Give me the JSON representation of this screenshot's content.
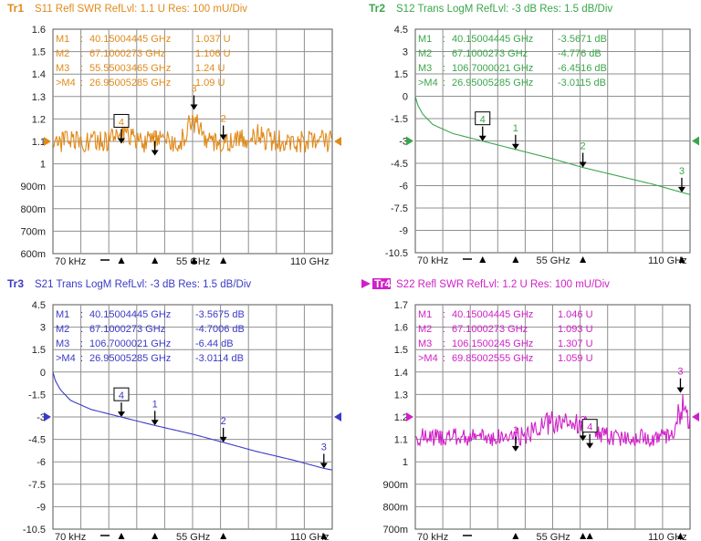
{
  "chart_data": [
    {
      "type": "line",
      "trace_id": "Tr1",
      "header": "S11 Refl SWR RefLvl: 1.1  U Res: 100 mU/Div",
      "color": "#e08a1a",
      "yticks": [
        "1.6",
        "1.5",
        "1.4",
        "1.3",
        "1.2",
        "1.1",
        "1",
        "900m",
        "800m",
        "700m",
        "600m"
      ],
      "ylim": [
        0.6,
        1.6
      ],
      "ref_level": 1.1,
      "xlim": [
        7e-05,
        110
      ],
      "xlabels": [
        "70 kHz",
        "55 GHz",
        "110 GHz"
      ],
      "markers_table": [
        {
          "id": "M1",
          "freq": "40.15004445 GHz",
          "value": "1.037  U"
        },
        {
          "id": "M2",
          "freq": "67.1000273 GHz",
          "value": "1.106  U"
        },
        {
          "id": "M3",
          "freq": "55.55003465 GHz",
          "value": "1.24  U"
        },
        {
          "id": ">M4",
          "freq": "26.95005285 GHz",
          "value": "1.09  U"
        }
      ],
      "markers": [
        {
          "label": "1",
          "x": 40.15,
          "y": 1.037
        },
        {
          "label": "2",
          "x": 67.1,
          "y": 1.106
        },
        {
          "label": "3",
          "x": 55.55,
          "y": 1.24
        },
        {
          "label": "4",
          "x": 26.95,
          "y": 1.09,
          "active": true
        }
      ],
      "series": [
        {
          "style": "noise",
          "base": 1.1,
          "amp": 0.05,
          "seed": 3,
          "bumps": [
            {
              "x": 27,
              "h": 0.05,
              "w": 4
            },
            {
              "x": 55.5,
              "h": 0.12,
              "w": 3
            },
            {
              "x": 80,
              "h": 0.04,
              "w": 4
            }
          ]
        }
      ]
    },
    {
      "type": "line",
      "trace_id": "Tr2",
      "header": "S12 Trans LogM RefLvl: -3  dB Res: 1.5  dB/Div",
      "color": "#3aa64a",
      "yticks": [
        "4.5",
        "3",
        "1.5",
        "0",
        "-1.5",
        "-3",
        "-4.5",
        "-6",
        "-7.5",
        "-9",
        "-10.5"
      ],
      "ylim": [
        -10.5,
        4.5
      ],
      "ref_level": -3,
      "xlim": [
        7e-05,
        110
      ],
      "xlabels": [
        "70 kHz",
        "55 GHz",
        "110 GHz"
      ],
      "markers_table": [
        {
          "id": "M1",
          "freq": "40.15004445 GHz",
          "value": "-3.5671  dB"
        },
        {
          "id": "M2",
          "freq": "67.1000273 GHz",
          "value": "-4.776  dB"
        },
        {
          "id": "M3",
          "freq": "106.7000021 GHz",
          "value": "-6.4516  dB"
        },
        {
          "id": ">M4",
          "freq": "26.95005285 GHz",
          "value": "-3.0115  dB"
        }
      ],
      "markers": [
        {
          "label": "1",
          "x": 40.15,
          "y": -3.5671
        },
        {
          "label": "2",
          "x": 67.1,
          "y": -4.776
        },
        {
          "label": "3",
          "x": 106.7,
          "y": -6.4516
        },
        {
          "label": "4",
          "x": 26.95,
          "y": -3.0115,
          "active": true
        }
      ],
      "series": [
        {
          "style": "smooth",
          "points": [
            [
              7e-05,
              0
            ],
            [
              1,
              -0.6
            ],
            [
              3,
              -1.2
            ],
            [
              7,
              -1.9
            ],
            [
              15,
              -2.5
            ],
            [
              26.95,
              -3.01
            ],
            [
              40.15,
              -3.57
            ],
            [
              55,
              -4.2
            ],
            [
              67.1,
              -4.78
            ],
            [
              80,
              -5.3
            ],
            [
              95,
              -5.9
            ],
            [
              106.7,
              -6.45
            ],
            [
              110,
              -6.6
            ]
          ]
        }
      ]
    },
    {
      "type": "line",
      "trace_id": "Tr3",
      "header": "S21 Trans LogM RefLvl: -3  dB Res: 1.5  dB/Div",
      "color": "#3a3ac8",
      "yticks": [
        "4.5",
        "3",
        "1.5",
        "0",
        "-1.5",
        "-3",
        "-4.5",
        "-6",
        "-7.5",
        "-9",
        "-10.5"
      ],
      "ylim": [
        -10.5,
        4.5
      ],
      "ref_level": -3,
      "xlim": [
        7e-05,
        110
      ],
      "xlabels": [
        "70 kHz",
        "55 GHz",
        "110 GHz"
      ],
      "markers_table": [
        {
          "id": "M1",
          "freq": "40.15004445 GHz",
          "value": "-3.5675  dB"
        },
        {
          "id": "M2",
          "freq": "67.1000273 GHz",
          "value": "-4.7006  dB"
        },
        {
          "id": "M3",
          "freq": "106.7000021 GHz",
          "value": "-6.44  dB"
        },
        {
          "id": ">M4",
          "freq": "26.95005285 GHz",
          "value": "-3.0114  dB"
        }
      ],
      "markers": [
        {
          "label": "1",
          "x": 40.15,
          "y": -3.5675
        },
        {
          "label": "2",
          "x": 67.1,
          "y": -4.7006
        },
        {
          "label": "3",
          "x": 106.7,
          "y": -6.44
        },
        {
          "label": "4",
          "x": 26.95,
          "y": -3.0114,
          "active": true
        }
      ],
      "series": [
        {
          "style": "smooth",
          "points": [
            [
              7e-05,
              0
            ],
            [
              1,
              -0.6
            ],
            [
              3,
              -1.2
            ],
            [
              7,
              -1.9
            ],
            [
              15,
              -2.5
            ],
            [
              26.95,
              -3.01
            ],
            [
              40.15,
              -3.57
            ],
            [
              55,
              -4.15
            ],
            [
              67.1,
              -4.7
            ],
            [
              80,
              -5.3
            ],
            [
              95,
              -5.9
            ],
            [
              106.7,
              -6.44
            ],
            [
              110,
              -6.55
            ]
          ]
        }
      ]
    },
    {
      "type": "line",
      "trace_id": "Tr4",
      "header": "S22 Refl SWR RefLvl: 1.2  U Res: 100 mU/Div",
      "color": "#d020c8",
      "yticks": [
        "1.7",
        "1.6",
        "1.5",
        "1.4",
        "1.3",
        "1.2",
        "1.1",
        "1",
        "900m",
        "800m",
        "700m"
      ],
      "ylim": [
        0.7,
        1.7
      ],
      "ref_level": 1.2,
      "xlim": [
        7e-05,
        110
      ],
      "xlabels": [
        "70 kHz",
        "55 GHz",
        "110 GHz"
      ],
      "markers_table": [
        {
          "id": "M1",
          "freq": "40.15004445 GHz",
          "value": "1.046  U"
        },
        {
          "id": "M2",
          "freq": "67.1000273 GHz",
          "value": "1.093  U"
        },
        {
          "id": "M3",
          "freq": "106.1500245 GHz",
          "value": "1.307  U"
        },
        {
          "id": ">M4",
          "freq": "69.85002555 GHz",
          "value": "1.059  U"
        }
      ],
      "markers": [
        {
          "label": "1",
          "x": 40.15,
          "y": 1.046
        },
        {
          "label": "2",
          "x": 67.1,
          "y": 1.093
        },
        {
          "label": "3",
          "x": 106.15,
          "y": 1.307
        },
        {
          "label": "4",
          "x": 69.85,
          "y": 1.059,
          "active": true
        }
      ],
      "series": [
        {
          "style": "noise",
          "base": 1.11,
          "amp": 0.04,
          "seed": 7,
          "bumps": [
            {
              "x": 55,
              "h": 0.08,
              "w": 8
            },
            {
              "x": 67,
              "h": 0.06,
              "w": 6
            },
            {
              "x": 107,
              "h": 0.15,
              "w": 3
            }
          ]
        }
      ]
    }
  ]
}
